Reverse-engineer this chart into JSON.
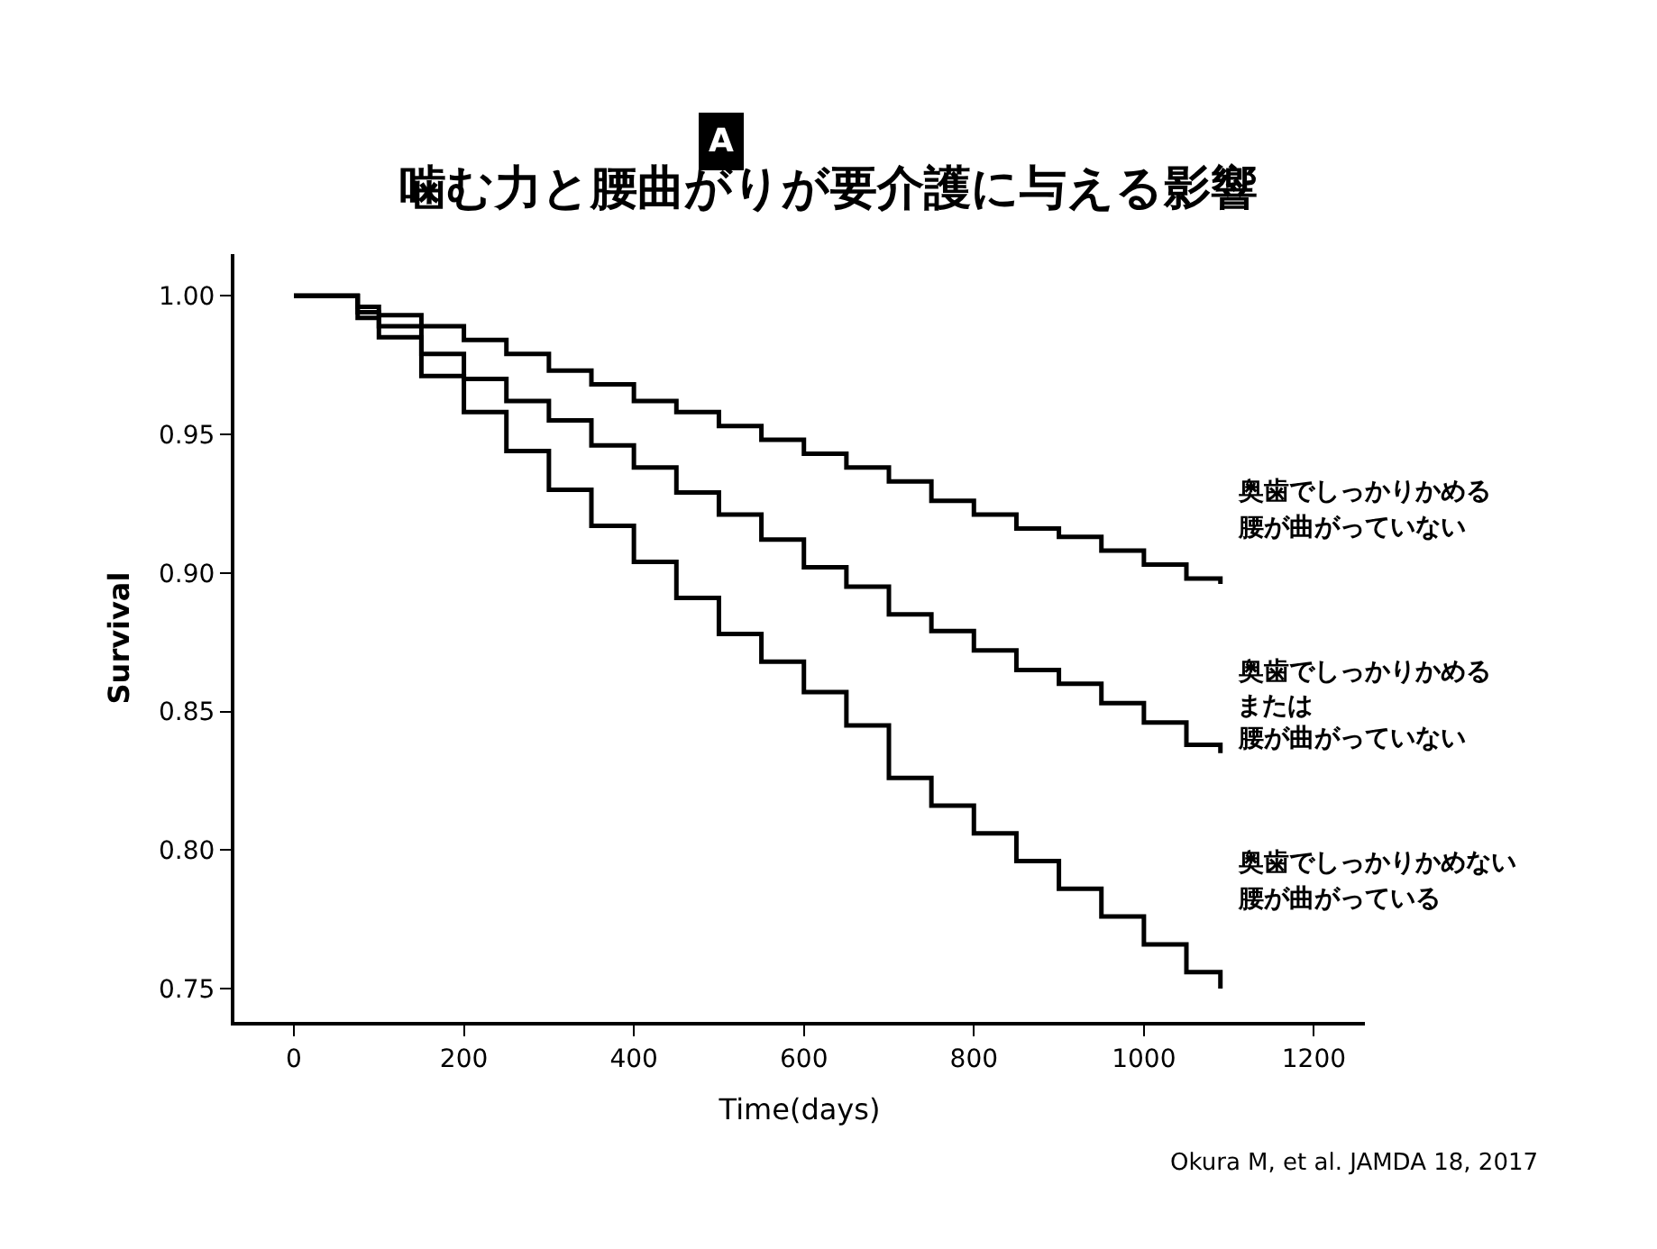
{
  "chart_data": {
    "type": "step",
    "title": "噛む力と腰曲がりが要介護に与える影響",
    "xlabel": "Time(days)",
    "ylabel": "Survival",
    "annotations": [
      "A",
      "奥歯でしっかりかめる",
      "腰が曲がっていない",
      "奥歯でしっかりかめる",
      "または",
      "腰が曲がっていない",
      "奥歯でしっかりかめない",
      "腰が曲がっている",
      "Okura M, et al. JAMDA 18, 2017"
    ],
    "series": [
      {
        "color": "#000000",
        "x": [
          0,
          50,
          75,
          100,
          150,
          200,
          250,
          300,
          350,
          400,
          450,
          500,
          550,
          600,
          650,
          700,
          750,
          800,
          850,
          900,
          950,
          1000,
          1050,
          1090
        ],
        "values": [
          1.0,
          1.0,
          0.996,
          0.993,
          0.989,
          0.984,
          0.979,
          0.973,
          0.968,
          0.962,
          0.958,
          0.953,
          0.948,
          0.943,
          0.938,
          0.933,
          0.926,
          0.921,
          0.916,
          0.913,
          0.908,
          0.903,
          0.898,
          0.896
        ]
      },
      {
        "color": "#000000",
        "x": [
          0,
          50,
          75,
          100,
          150,
          200,
          250,
          300,
          350,
          400,
          450,
          500,
          550,
          600,
          650,
          700,
          750,
          800,
          850,
          900,
          950,
          1000,
          1050,
          1090
        ],
        "values": [
          1.0,
          1.0,
          0.994,
          0.989,
          0.979,
          0.97,
          0.962,
          0.955,
          0.946,
          0.938,
          0.929,
          0.921,
          0.912,
          0.902,
          0.895,
          0.885,
          0.879,
          0.872,
          0.865,
          0.86,
          0.853,
          0.846,
          0.838,
          0.835
        ]
      },
      {
        "color": "#000000",
        "x": [
          0,
          50,
          75,
          100,
          150,
          200,
          250,
          300,
          350,
          400,
          450,
          500,
          550,
          600,
          650,
          700,
          750,
          800,
          850,
          900,
          950,
          1000,
          1050,
          1090
        ],
        "values": [
          1.0,
          1.0,
          0.992,
          0.985,
          0.971,
          0.958,
          0.944,
          0.93,
          0.917,
          0.904,
          0.891,
          0.878,
          0.868,
          0.857,
          0.845,
          0.826,
          0.816,
          0.806,
          0.796,
          0.786,
          0.776,
          0.766,
          0.756,
          0.75
        ]
      }
    ],
    "xlim": [
      -70,
      1260
    ],
    "xticks": [
      0,
      200,
      400,
      600,
      800,
      1000,
      1200
    ],
    "ylim": [
      0.738,
      1.015
    ],
    "yticks": [
      {
        "value": 0.75,
        "label": "0.75"
      },
      {
        "value": 0.8,
        "label": "0.80"
      },
      {
        "value": 0.85,
        "label": "0.85"
      },
      {
        "value": 0.9,
        "label": "0.90"
      },
      {
        "value": 0.95,
        "label": "0.95"
      },
      {
        "value": 1.0,
        "label": "1.00"
      }
    ],
    "line_style": "solid",
    "marker": "none"
  }
}
